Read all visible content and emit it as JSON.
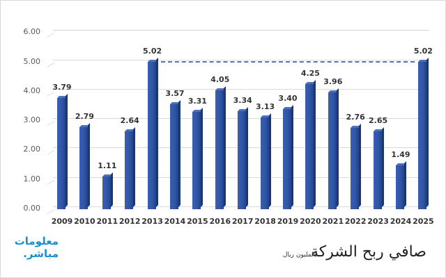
{
  "chart_data": {
    "type": "bar",
    "title": "صافي ربح الشركة",
    "subtitle": "بالمليون ريال",
    "xlabel": "",
    "ylabel": "",
    "ylim": [
      0,
      6
    ],
    "yticks": [
      "0.00",
      "1.00",
      "2.00",
      "3.00",
      "4.00",
      "5.00",
      "6.00"
    ],
    "grid": true,
    "legend": null,
    "categories": [
      "2009",
      "2010",
      "2011",
      "2012",
      "2013",
      "2014",
      "2015",
      "2016",
      "2017",
      "2018",
      "2019",
      "2020",
      "2021",
      "2022",
      "2023",
      "2024",
      "2025"
    ],
    "values": [
      3.79,
      2.79,
      1.11,
      2.64,
      5.02,
      3.57,
      3.31,
      4.05,
      3.34,
      3.13,
      3.4,
      4.25,
      3.96,
      2.76,
      2.65,
      1.49,
      5.02
    ],
    "value_labels": [
      "3.79",
      "2.79",
      "1.11",
      "2.64",
      "5.02",
      "3.57",
      "3.31",
      "4.05",
      "3.34",
      "3.13",
      "3.40",
      "4.25",
      "3.96",
      "2.76",
      "2.65",
      "1.49",
      "5.02"
    ],
    "annotations": [
      {
        "type": "dashed-line",
        "from": "2013",
        "to": "2025",
        "y": 5.02,
        "color": "#4472c4"
      }
    ],
    "bar_color": "#2f55a6"
  },
  "logo": {
    "line1": "معلومات",
    "line2": "مباشر."
  }
}
